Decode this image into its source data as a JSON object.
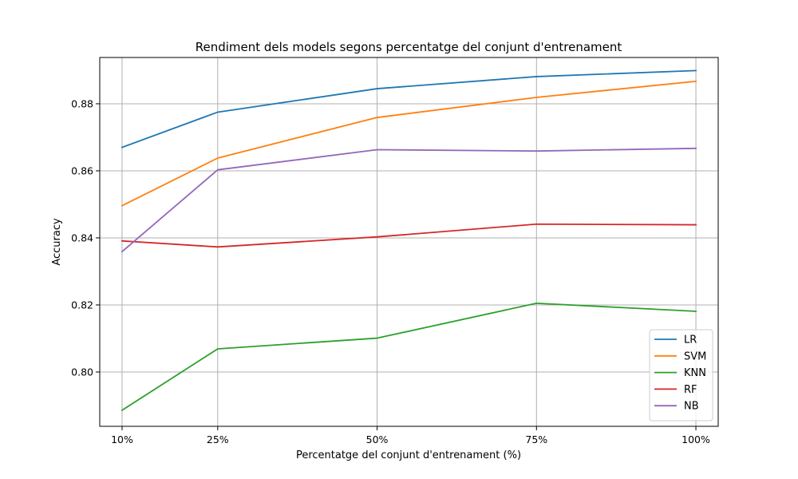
{
  "chart_data": {
    "type": "line",
    "title": "Rendiment dels models segons percentatge del conjunt d'entrenament",
    "xlabel": "Percentatge del conjunt d'entrenament (%)",
    "ylabel": "Accuracy",
    "x": [
      10,
      25,
      50,
      75,
      100
    ],
    "x_tick_labels": [
      "10%",
      "25%",
      "50%",
      "75%",
      "100%"
    ],
    "xlim": [
      6.5,
      103.5
    ],
    "ylim": [
      0.7838,
      0.8938
    ],
    "y_ticks": [
      0.8,
      0.82,
      0.84,
      0.86,
      0.88
    ],
    "y_tick_labels": [
      "0.80",
      "0.82",
      "0.84",
      "0.86",
      "0.88"
    ],
    "grid": true,
    "legend_position": "lower-right",
    "series": [
      {
        "name": "LR",
        "color": "#1f77b4",
        "values": [
          0.867,
          0.8775,
          0.8845,
          0.8881,
          0.8899
        ]
      },
      {
        "name": "SVM",
        "color": "#ff7f0e",
        "values": [
          0.8496,
          0.8638,
          0.8759,
          0.8819,
          0.8867
        ]
      },
      {
        "name": "KNN",
        "color": "#2ca02c",
        "values": [
          0.7886,
          0.8069,
          0.8101,
          0.8205,
          0.8181
        ]
      },
      {
        "name": "RF",
        "color": "#d62728",
        "values": [
          0.8391,
          0.8373,
          0.8403,
          0.8441,
          0.8439
        ]
      },
      {
        "name": "NB",
        "color": "#9467bd",
        "values": [
          0.8359,
          0.8603,
          0.8663,
          0.8659,
          0.8667
        ]
      }
    ]
  }
}
